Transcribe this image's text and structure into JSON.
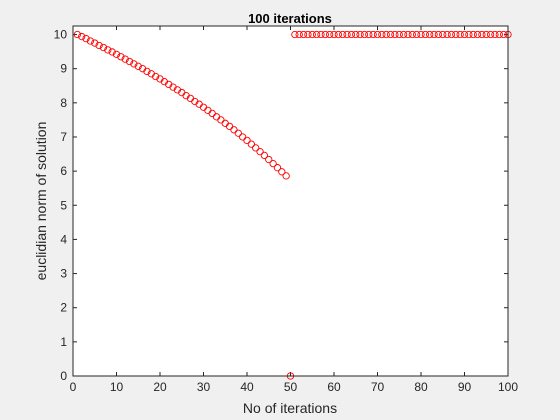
{
  "chart_data": {
    "type": "scatter",
    "title": "100 iterations",
    "xlabel": "No of iterations",
    "ylabel": "euclidian norm of solution",
    "xlim": [
      0,
      100
    ],
    "ylim": [
      0,
      10.25
    ],
    "xticks": [
      0,
      10,
      20,
      30,
      40,
      50,
      60,
      70,
      80,
      90,
      100
    ],
    "yticks": [
      0,
      1,
      2,
      3,
      4,
      5,
      6,
      7,
      8,
      9,
      10
    ],
    "marker": "open-circle",
    "marker_color": "#ff0000",
    "grid": false,
    "box": true,
    "x": [
      1,
      2,
      3,
      4,
      5,
      6,
      7,
      8,
      9,
      10,
      11,
      12,
      13,
      14,
      15,
      16,
      17,
      18,
      19,
      20,
      21,
      22,
      23,
      24,
      25,
      26,
      27,
      28,
      29,
      30,
      31,
      32,
      33,
      34,
      35,
      36,
      37,
      38,
      39,
      40,
      41,
      42,
      43,
      44,
      45,
      46,
      47,
      48,
      49,
      50,
      51,
      52,
      53,
      54,
      55,
      56,
      57,
      58,
      59,
      60,
      61,
      62,
      63,
      64,
      65,
      66,
      67,
      68,
      69,
      70,
      71,
      72,
      73,
      74,
      75,
      76,
      77,
      78,
      79,
      80,
      81,
      82,
      83,
      84,
      85,
      86,
      87,
      88,
      89,
      90,
      91,
      92,
      93,
      94,
      95,
      96,
      97,
      98,
      99,
      100
    ],
    "y": [
      10.0,
      9.94,
      9.88,
      9.81,
      9.75,
      9.68,
      9.62,
      9.55,
      9.49,
      9.42,
      9.35,
      9.28,
      9.21,
      9.14,
      9.07,
      9.0,
      8.92,
      8.85,
      8.77,
      8.7,
      8.62,
      8.54,
      8.46,
      8.38,
      8.3,
      8.21,
      8.13,
      8.04,
      7.96,
      7.87,
      7.78,
      7.69,
      7.59,
      7.5,
      7.4,
      7.31,
      7.21,
      7.11,
      7.0,
      6.9,
      6.79,
      6.68,
      6.57,
      6.46,
      6.34,
      6.22,
      6.1,
      5.98,
      5.86,
      0.0,
      10.0,
      10.0,
      10.0,
      10.0,
      10.0,
      10.0,
      10.0,
      10.0,
      10.0,
      10.0,
      10.0,
      10.0,
      10.0,
      10.0,
      10.0,
      10.0,
      10.0,
      10.0,
      10.0,
      10.0,
      10.0,
      10.0,
      10.0,
      10.0,
      10.0,
      10.0,
      10.0,
      10.0,
      10.0,
      10.0,
      10.0,
      10.0,
      10.0,
      10.0,
      10.0,
      10.0,
      10.0,
      10.0,
      10.0,
      10.0,
      10.0,
      10.0,
      10.0,
      10.0,
      10.0,
      10.0,
      10.0,
      10.0,
      10.0,
      10.0
    ]
  }
}
